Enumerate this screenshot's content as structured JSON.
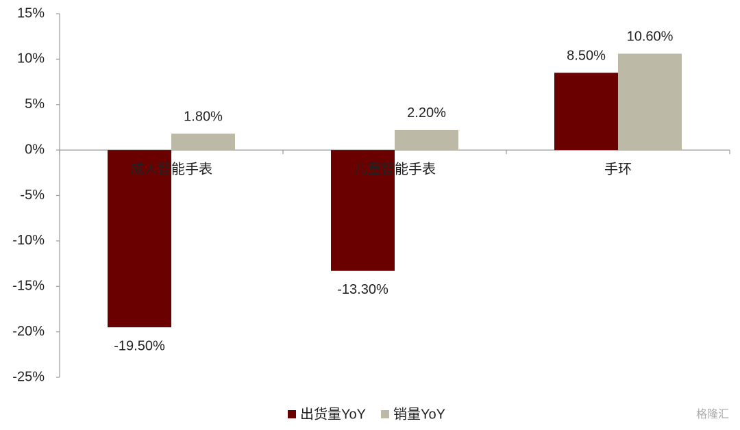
{
  "chart_data": {
    "type": "bar",
    "categories": [
      "成人智能手表",
      "儿童智能手表",
      "手环"
    ],
    "series": [
      {
        "name": "出货量YoY",
        "color": "#6b0000",
        "values": [
          -19.5,
          -13.3,
          8.5
        ],
        "value_labels": [
          "-19.50%",
          "-13.30%",
          "8.50%"
        ]
      },
      {
        "name": "销量YoY",
        "color": "#bcbaa6",
        "values": [
          1.8,
          2.2,
          10.6
        ],
        "value_labels": [
          "1.80%",
          "2.20%",
          "10.60%"
        ]
      }
    ],
    "ylim": [
      -25,
      15
    ],
    "yticks": [
      {
        "value": 15,
        "label": "15%"
      },
      {
        "value": 10,
        "label": "10%"
      },
      {
        "value": 5,
        "label": "5%"
      },
      {
        "value": 0,
        "label": "0%"
      },
      {
        "value": -5,
        "label": "-5%"
      },
      {
        "value": -10,
        "label": "-10%"
      },
      {
        "value": -15,
        "label": "-15%"
      },
      {
        "value": -20,
        "label": "-20%"
      },
      {
        "value": -25,
        "label": "-25%"
      }
    ],
    "grid": false,
    "legend": "bottom",
    "watermark": "格隆汇"
  }
}
